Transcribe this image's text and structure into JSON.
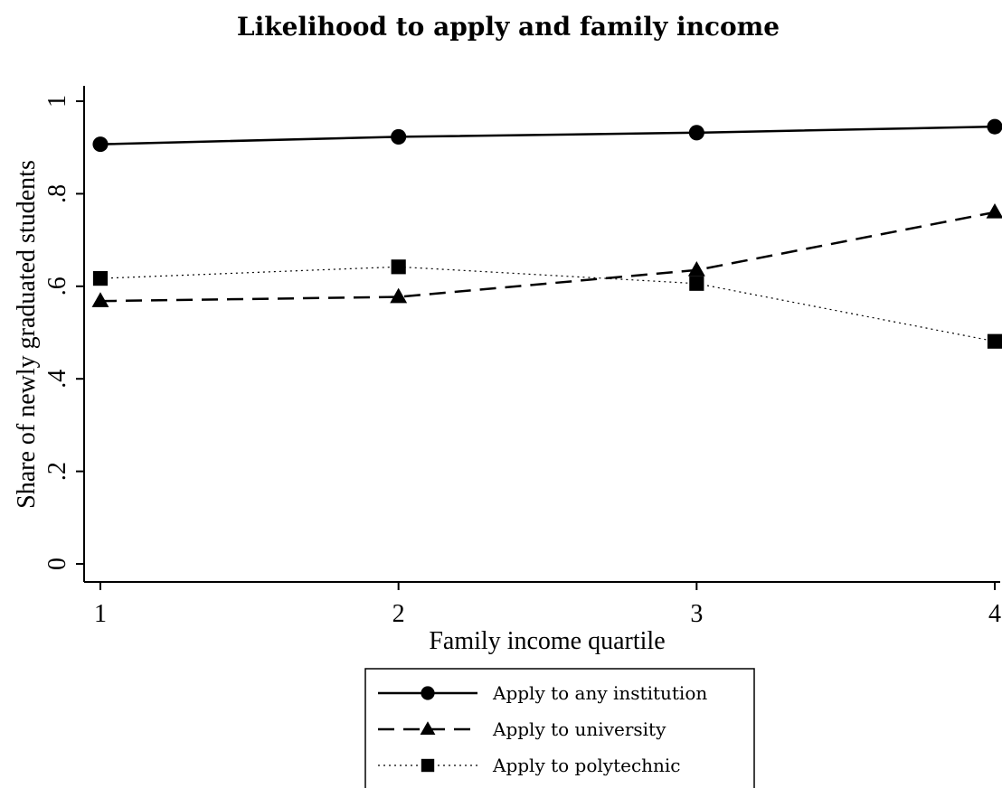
{
  "chart_data": {
    "type": "line",
    "title": "Likelihood to apply and family income",
    "xlabel": "Family income quartile",
    "ylabel": "Share of newly graduated students",
    "x": [
      1,
      2,
      3,
      4
    ],
    "x_tick_labels": [
      "1",
      "2",
      "3",
      "4"
    ],
    "xlim": [
      1,
      4
    ],
    "ylim": [
      0,
      1
    ],
    "y_ticks": [
      0,
      0.2,
      0.4,
      0.6,
      0.8,
      1
    ],
    "y_tick_labels": [
      "0",
      ".2",
      ".4",
      ".6",
      ".8",
      "1"
    ],
    "grid": false,
    "legend_position": "bottom-center",
    "series": [
      {
        "name": "Apply to any institution",
        "values": [
          0.907,
          0.923,
          0.932,
          0.945
        ],
        "line_style": "solid",
        "marker": "circle",
        "color": "#000000"
      },
      {
        "name": "Apply to university",
        "values": [
          0.568,
          0.577,
          0.635,
          0.76
        ],
        "line_style": "dashed",
        "marker": "triangle",
        "color": "#000000"
      },
      {
        "name": "Apply to polytechnic",
        "values": [
          0.617,
          0.642,
          0.606,
          0.481
        ],
        "line_style": "dotted",
        "marker": "square",
        "color": "#000000"
      }
    ]
  }
}
